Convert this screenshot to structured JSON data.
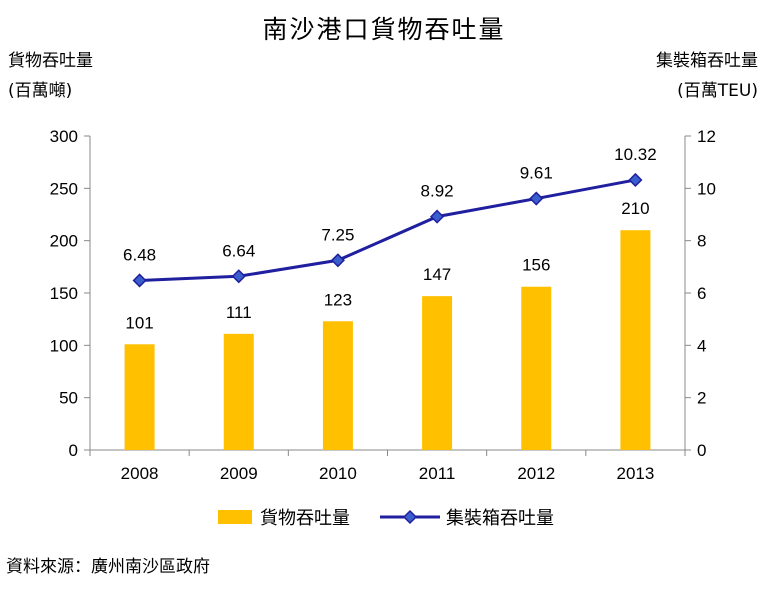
{
  "title": "南沙港口貨物吞吐量",
  "left_axis": {
    "line1": "貨物吞吐量",
    "line2": "(百萬噸)"
  },
  "right_axis": {
    "line1": "集裝箱吞吐量",
    "line2": "(百萬TEU)"
  },
  "source": "資料來源：廣州南沙區政府",
  "colors": {
    "bar": "#FFC000",
    "line": "#1F1F9F",
    "marker": "#3A5FCD"
  },
  "chart_data": {
    "type": "bar",
    "title": "南沙港口貨物吞吐量",
    "categories": [
      "2008",
      "2009",
      "2010",
      "2011",
      "2012",
      "2013"
    ],
    "series": [
      {
        "name": "貨物吞吐量",
        "type": "bar",
        "axis": "left",
        "values": [
          101,
          111,
          123,
          147,
          156,
          210
        ]
      },
      {
        "name": "集裝箱吞吐量",
        "type": "line",
        "axis": "right",
        "values": [
          6.48,
          6.64,
          7.25,
          8.92,
          9.61,
          10.32
        ]
      }
    ],
    "ylabel": "貨物吞吐量 (百萬噸)",
    "y2label": "集裝箱吞吐量 (百萬TEU)",
    "ylim": [
      0,
      300
    ],
    "y2lim": [
      0,
      12
    ],
    "yticks": [
      0,
      50,
      100,
      150,
      200,
      250,
      300
    ],
    "y2ticks": [
      0,
      2,
      4,
      6,
      8,
      10,
      12
    ],
    "legend": "bottom",
    "grid": false
  }
}
